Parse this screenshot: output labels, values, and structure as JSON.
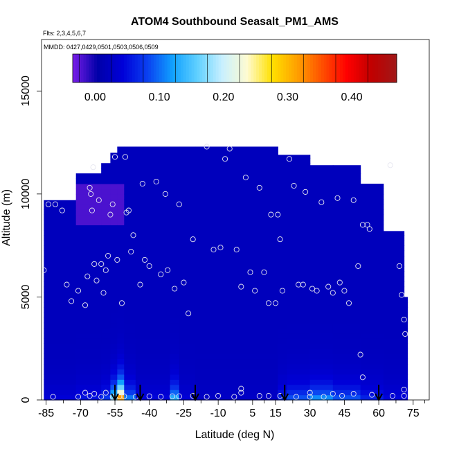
{
  "chart_data": {
    "type": "heatmap",
    "title": "ATOM4 Southbound Seasalt_PM1_AMS",
    "subtitle_flights": "Flts: 2,3,4,5,6,7",
    "subtitle_dates": "MMDD: 0427,0429,0501,0503,0506,0509",
    "xlabel": "Latitude (deg N)",
    "ylabel": "Altitude (m)",
    "xlim": [
      -87,
      82
    ],
    "ylim": [
      0,
      17500
    ],
    "x_ticks": [
      -85,
      -70,
      -55,
      -40,
      -25,
      -10,
      5,
      15,
      30,
      45,
      60,
      75
    ],
    "x_tick_labels": [
      "-85",
      "-70",
      "-55",
      "-40",
      "-25",
      "-10",
      "5",
      "15",
      "30",
      "45",
      "60",
      "75"
    ],
    "x_minor_ticks": [
      -77.5,
      -62.5,
      -47.5,
      -32.5,
      -17.5,
      -2.5,
      10,
      22.5,
      37.5,
      52.5,
      67.5,
      80
    ],
    "y_ticks": [
      0,
      5000,
      10000,
      15000
    ],
    "y_tick_labels": [
      "0",
      "5000",
      "10000",
      "15000"
    ],
    "colorbar": {
      "range": [
        -0.035,
        0.47
      ],
      "ticks": [
        0.0,
        0.1,
        0.2,
        0.3,
        0.4
      ],
      "tick_labels": [
        "0.00",
        "0.10",
        "0.20",
        "0.30",
        "0.40"
      ],
      "colors": [
        "#7a1de8",
        "#0000a8",
        "#0000d8",
        "#0a40f0",
        "#10a0ff",
        "#60d0ff",
        "#c8f0ff",
        "#fffbd0",
        "#ffe000",
        "#ffa000",
        "#ff5000",
        "#ff0000",
        "#c00000",
        "#a01818"
      ]
    },
    "flight_arrows_lat": [
      -55,
      -44,
      -20,
      19,
      60
    ],
    "background_value": 0.02,
    "column_profiles": [
      {
        "lat_range": [
          -86,
          -72
        ],
        "top": 9700,
        "surface_value": 0.045
      },
      {
        "lat_range": [
          -72,
          -61
        ],
        "top": 11000,
        "surface_value": 0.06
      },
      {
        "lat_range": [
          -61,
          -57
        ],
        "top": 11500,
        "surface_value": 0.085
      },
      {
        "lat_range": [
          -57,
          -54
        ],
        "top": 12000,
        "surface_value": 0.19
      },
      {
        "lat_range": [
          -54,
          -51
        ],
        "top": 12300,
        "surface_value": 0.37
      },
      {
        "lat_range": [
          -51,
          -46
        ],
        "top": 12300,
        "surface_value": 0.12
      },
      {
        "lat_range": [
          -46,
          -31
        ],
        "top": 12300,
        "surface_value": 0.05
      },
      {
        "lat_range": [
          -31,
          -27
        ],
        "top": 12300,
        "surface_value": 0.15
      },
      {
        "lat_range": [
          -27,
          -20
        ],
        "top": 12300,
        "surface_value": 0.045
      },
      {
        "lat_range": [
          -20,
          16
        ],
        "top": 12300,
        "surface_value": 0.03
      },
      {
        "lat_range": [
          16,
          20
        ],
        "top": 11900,
        "surface_value": 0.075
      },
      {
        "lat_range": [
          20,
          30
        ],
        "top": 11900,
        "surface_value": 0.1
      },
      {
        "lat_range": [
          30,
          40
        ],
        "top": 11400,
        "surface_value": 0.13
      },
      {
        "lat_range": [
          40,
          52
        ],
        "top": 11400,
        "surface_value": 0.1
      },
      {
        "lat_range": [
          52,
          62
        ],
        "top": 10500,
        "surface_value": 0.07
      },
      {
        "lat_range": [
          62,
          71
        ],
        "top": 8200,
        "surface_value": 0.05
      },
      {
        "lat_range": [
          71,
          72.5
        ],
        "top": 5000,
        "surface_value": 0.05
      }
    ],
    "sample_points": [
      {
        "lat": -86,
        "alt": 6300
      },
      {
        "lat": -84,
        "alt": 9500
      },
      {
        "lat": -81,
        "alt": 9500
      },
      {
        "lat": -78,
        "alt": 9200
      },
      {
        "lat": -76,
        "alt": 5600
      },
      {
        "lat": -74,
        "alt": 4800
      },
      {
        "lat": -71,
        "alt": 5300
      },
      {
        "lat": -68,
        "alt": 4600
      },
      {
        "lat": -67,
        "alt": 6000
      },
      {
        "lat": -66,
        "alt": 10300
      },
      {
        "lat": -65.5,
        "alt": 10000
      },
      {
        "lat": -65,
        "alt": 9200
      },
      {
        "lat": -64.5,
        "alt": 11300
      },
      {
        "lat": -64,
        "alt": 6600
      },
      {
        "lat": -63,
        "alt": 5800
      },
      {
        "lat": -62,
        "alt": 9700
      },
      {
        "lat": -61,
        "alt": 6600
      },
      {
        "lat": -60,
        "alt": 5200
      },
      {
        "lat": -59,
        "alt": 6300
      },
      {
        "lat": -58,
        "alt": 7000
      },
      {
        "lat": -57,
        "alt": 9000
      },
      {
        "lat": -56,
        "alt": 9500
      },
      {
        "lat": -55,
        "alt": 11800
      },
      {
        "lat": -54,
        "alt": 6800
      },
      {
        "lat": -52,
        "alt": 4700
      },
      {
        "lat": -50.5,
        "alt": 11800
      },
      {
        "lat": -50,
        "alt": 9100
      },
      {
        "lat": -49,
        "alt": 9200
      },
      {
        "lat": -48,
        "alt": 7200
      },
      {
        "lat": -47,
        "alt": 8000
      },
      {
        "lat": -44,
        "alt": 5600
      },
      {
        "lat": -43,
        "alt": 10500
      },
      {
        "lat": -42,
        "alt": 6800
      },
      {
        "lat": -40,
        "alt": 6500
      },
      {
        "lat": -37,
        "alt": 10600
      },
      {
        "lat": -35,
        "alt": 6100
      },
      {
        "lat": -33,
        "alt": 10000
      },
      {
        "lat": -32,
        "alt": 6300
      },
      {
        "lat": -29,
        "alt": 5400
      },
      {
        "lat": -27,
        "alt": 9500
      },
      {
        "lat": -25,
        "alt": 5700
      },
      {
        "lat": -23,
        "alt": 4200
      },
      {
        "lat": -21,
        "alt": 7800
      },
      {
        "lat": -15,
        "alt": 12300
      },
      {
        "lat": -12,
        "alt": 7300
      },
      {
        "lat": -9,
        "alt": 7400
      },
      {
        "lat": -7,
        "alt": 11700
      },
      {
        "lat": -5,
        "alt": 12200
      },
      {
        "lat": -2,
        "alt": 7300
      },
      {
        "lat": 0,
        "alt": 5500
      },
      {
        "lat": 2,
        "alt": 10800
      },
      {
        "lat": 4,
        "alt": 6200
      },
      {
        "lat": 6,
        "alt": 5300
      },
      {
        "lat": 8,
        "alt": 10300
      },
      {
        "lat": 10,
        "alt": 6200
      },
      {
        "lat": 12,
        "alt": 4700
      },
      {
        "lat": 13,
        "alt": 9000
      },
      {
        "lat": 15,
        "alt": 4700
      },
      {
        "lat": 16,
        "alt": 9000
      },
      {
        "lat": 17,
        "alt": 7800
      },
      {
        "lat": 18,
        "alt": 5300
      },
      {
        "lat": 21,
        "alt": 11700
      },
      {
        "lat": 23,
        "alt": 10400
      },
      {
        "lat": 25,
        "alt": 5600
      },
      {
        "lat": 27,
        "alt": 5600
      },
      {
        "lat": 28,
        "alt": 10100
      },
      {
        "lat": 31,
        "alt": 5400
      },
      {
        "lat": 33,
        "alt": 5300
      },
      {
        "lat": 35,
        "alt": 9600
      },
      {
        "lat": 38,
        "alt": 5500
      },
      {
        "lat": 40,
        "alt": 5200
      },
      {
        "lat": 42,
        "alt": 9800
      },
      {
        "lat": 43,
        "alt": 5700
      },
      {
        "lat": 45,
        "alt": 5300
      },
      {
        "lat": 47,
        "alt": 4700
      },
      {
        "lat": 49,
        "alt": 9700
      },
      {
        "lat": 51,
        "alt": 6500
      },
      {
        "lat": 52,
        "alt": 2200
      },
      {
        "lat": 53,
        "alt": 8500
      },
      {
        "lat": 55,
        "alt": 8500
      },
      {
        "lat": 56,
        "alt": 8300
      },
      {
        "lat": 53,
        "alt": 1100
      },
      {
        "lat": 65,
        "alt": 11400
      },
      {
        "lat": 69,
        "alt": 6500
      },
      {
        "lat": 70,
        "alt": 5100
      },
      {
        "lat": 71,
        "alt": 3900
      },
      {
        "lat": 71.5,
        "alt": 3200
      },
      {
        "lat": 71,
        "alt": 500
      },
      {
        "lat": -82,
        "alt": 150
      },
      {
        "lat": -71,
        "alt": 150
      },
      {
        "lat": -68,
        "alt": 350
      },
      {
        "lat": -66,
        "alt": 200
      },
      {
        "lat": -64,
        "alt": 300
      },
      {
        "lat": -61,
        "alt": 150
      },
      {
        "lat": -59,
        "alt": 350
      },
      {
        "lat": -56,
        "alt": 150
      },
      {
        "lat": -53,
        "alt": 180
      },
      {
        "lat": -51,
        "alt": 180
      },
      {
        "lat": -46,
        "alt": 150
      },
      {
        "lat": -40,
        "alt": 180
      },
      {
        "lat": -35,
        "alt": 150
      },
      {
        "lat": -30,
        "alt": 180
      },
      {
        "lat": -27,
        "alt": 180
      },
      {
        "lat": -21,
        "alt": 200
      },
      {
        "lat": -15,
        "alt": 150
      },
      {
        "lat": -10,
        "alt": 200
      },
      {
        "lat": -3,
        "alt": 150
      },
      {
        "lat": 0,
        "alt": 350
      },
      {
        "lat": 0,
        "alt": 550
      },
      {
        "lat": 8,
        "alt": 200
      },
      {
        "lat": 12,
        "alt": 200
      },
      {
        "lat": 17,
        "alt": 200
      },
      {
        "lat": 24,
        "alt": 150
      },
      {
        "lat": 30,
        "alt": 150
      },
      {
        "lat": 30,
        "alt": 350
      },
      {
        "lat": 36,
        "alt": 150
      },
      {
        "lat": 40,
        "alt": 300
      },
      {
        "lat": 44,
        "alt": 200
      },
      {
        "lat": 49,
        "alt": 300
      },
      {
        "lat": 57,
        "alt": 250
      },
      {
        "lat": 66,
        "alt": 200
      },
      {
        "lat": 71,
        "alt": 200
      }
    ]
  }
}
